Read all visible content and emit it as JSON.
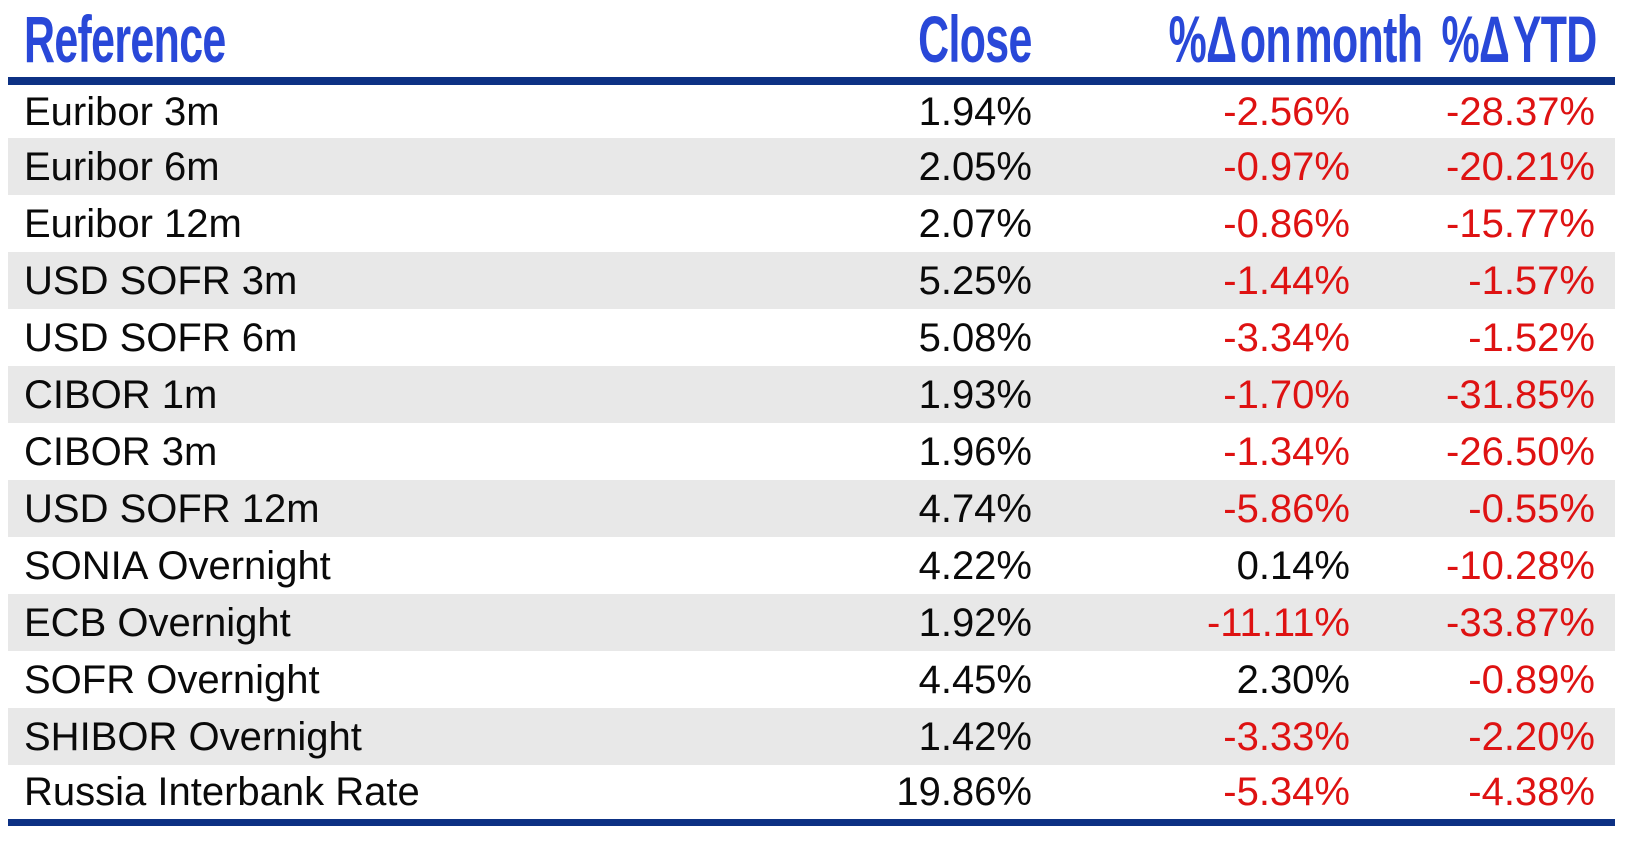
{
  "chart_data": {
    "type": "table",
    "columns": [
      "Reference",
      "Close",
      "%Δ on month",
      "%Δ YTD"
    ],
    "rows": [
      {
        "ref": "Euribor 3m",
        "close": "1.94%",
        "month": "-2.56%",
        "ytd": "-28.37%"
      },
      {
        "ref": "Euribor 6m",
        "close": "2.05%",
        "month": "-0.97%",
        "ytd": "-20.21%"
      },
      {
        "ref": "Euribor 12m",
        "close": "2.07%",
        "month": "-0.86%",
        "ytd": "-15.77%"
      },
      {
        "ref": "USD SOFR 3m",
        "close": "5.25%",
        "month": "-1.44%",
        "ytd": "-1.57%"
      },
      {
        "ref": "USD SOFR 6m",
        "close": "5.08%",
        "month": "-3.34%",
        "ytd": "-1.52%"
      },
      {
        "ref": "CIBOR 1m",
        "close": "1.93%",
        "month": "-1.70%",
        "ytd": "-31.85%"
      },
      {
        "ref": "CIBOR 3m",
        "close": "1.96%",
        "month": "-1.34%",
        "ytd": "-26.50%"
      },
      {
        "ref": "USD SOFR 12m",
        "close": "4.74%",
        "month": "-5.86%",
        "ytd": "-0.55%"
      },
      {
        "ref": "SONIA Overnight",
        "close": "4.22%",
        "month": "0.14%",
        "ytd": "-10.28%"
      },
      {
        "ref": "ECB Overnight",
        "close": "1.92%",
        "month": "-11.11%",
        "ytd": "-33.87%"
      },
      {
        "ref": "SOFR Overnight",
        "close": "4.45%",
        "month": "2.30%",
        "ytd": "-0.89%"
      },
      {
        "ref": "SHIBOR Overnight",
        "close": "1.42%",
        "month": "-3.33%",
        "ytd": "-2.20%"
      },
      {
        "ref": "Russia Interbank Rate",
        "close": "19.86%",
        "month": "-5.34%",
        "ytd": "-4.38%"
      }
    ],
    "layout": {
      "alternating_row_shading": true,
      "numeric_alignment": "right",
      "negative_value_color": "#DE1212"
    }
  },
  "colors": {
    "header_text": "#2948D8",
    "rule": "#0D3184",
    "negative": "#DE1212",
    "row_alt": "#E8E8E8",
    "body_text": "#0A0A0A",
    "background": "#FFFFFF"
  }
}
